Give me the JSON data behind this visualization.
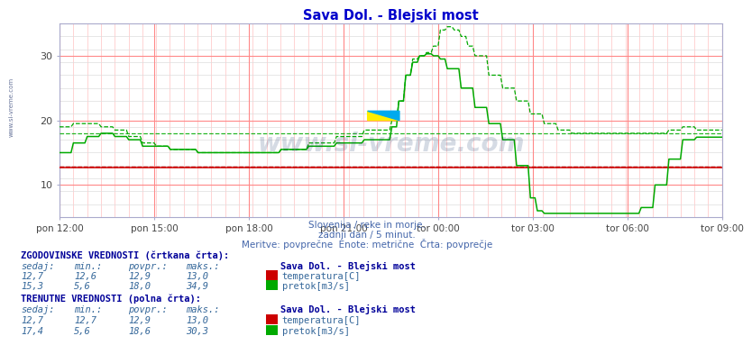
{
  "title": "Sava Dol. - Blejski most",
  "subtitle1": "Slovenija / reke in morje.",
  "subtitle2": "zadnji dan / 5 minut.",
  "subtitle3": "Meritve: povprečne  Enote: metrične  Črta: povprečje",
  "xlabel_ticks": [
    "pon 12:00",
    "pon 15:00",
    "pon 18:00",
    "pon 21:00",
    "tor 00:00",
    "tor 03:00",
    "tor 06:00",
    "tor 09:00"
  ],
  "yticks": [
    10,
    20,
    30
  ],
  "ylim": [
    5,
    35
  ],
  "xlim_max": 287,
  "bg_color": "#ffffff",
  "temp_color": "#cc0000",
  "flow_color": "#00aa00",
  "grid_major_color": "#ff8888",
  "grid_minor_color": "#ffcccc",
  "hgrid_minor_color": "#dddddd",
  "watermark_text": "www.si-vreme.com",
  "watermark_color": "#1a3a6e",
  "watermark_alpha": 0.18,
  "title_color": "#0000cc",
  "subtitle_color": "#4466aa",
  "table_header_color": "#000099",
  "table_value_color": "#336699",
  "hist_section_label": "ZGODOVINSKE VREDNOSTI (črtkana črta):",
  "curr_section_label": "TRENUTNE VREDNOSTI (polna črta):",
  "col_headers": [
    "sedaj:",
    "min.:",
    "povpr.:",
    "maks.:"
  ],
  "station_label": "Sava Dol. - Blejski most",
  "hist_temp": {
    "sedaj": "12,7",
    "min": "12,6",
    "povpr": "12,9",
    "maks": "13,0",
    "label": "temperatura[C]"
  },
  "hist_flow": {
    "sedaj": "15,3",
    "min": "5,6",
    "povpr": "18,0",
    "maks": "34,9",
    "label": "pretok[m3/s]"
  },
  "curr_temp": {
    "sedaj": "12,7",
    "min": "12,7",
    "povpr": "12,9",
    "maks": "13,0",
    "label": "temperatura[C]"
  },
  "curr_flow": {
    "sedaj": "17,4",
    "min": "5,6",
    "povpr": "18,6",
    "maks": "30,3",
    "label": "pretok[m3/s]"
  },
  "avg_temp_hist": 12.9,
  "avg_flow_hist": 18.0,
  "avg_temp_curr": 12.9,
  "avg_flow_curr": 18.6,
  "n_points": 288,
  "left_watermark": "www.si-vreme.com"
}
